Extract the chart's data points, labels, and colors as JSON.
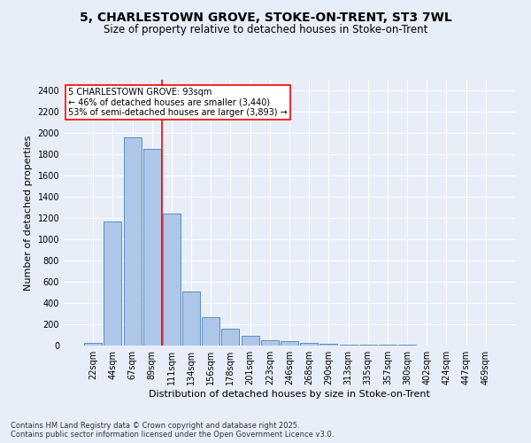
{
  "title_line1": "5, CHARLESTOWN GROVE, STOKE-ON-TRENT, ST3 7WL",
  "title_line2": "Size of property relative to detached houses in Stoke-on-Trent",
  "xlabel": "Distribution of detached houses by size in Stoke-on-Trent",
  "ylabel": "Number of detached properties",
  "categories": [
    "22sqm",
    "44sqm",
    "67sqm",
    "89sqm",
    "111sqm",
    "134sqm",
    "156sqm",
    "178sqm",
    "201sqm",
    "223sqm",
    "246sqm",
    "268sqm",
    "290sqm",
    "313sqm",
    "335sqm",
    "357sqm",
    "380sqm",
    "402sqm",
    "424sqm",
    "447sqm",
    "469sqm"
  ],
  "values": [
    28,
    1170,
    1960,
    1850,
    1240,
    510,
    270,
    155,
    90,
    48,
    40,
    25,
    18,
    12,
    8,
    5,
    5,
    3,
    3,
    2,
    2
  ],
  "bar_color": "#aec6e8",
  "bar_edge_color": "#5a8fc2",
  "vline_color": "red",
  "vline_x": 3.5,
  "annotation_text": "5 CHARLESTOWN GROVE: 93sqm\n← 46% of detached houses are smaller (3,440)\n53% of semi-detached houses are larger (3,893) →",
  "annotation_box_color": "red",
  "ylim": [
    0,
    2500
  ],
  "yticks": [
    0,
    200,
    400,
    600,
    800,
    1000,
    1200,
    1400,
    1600,
    1800,
    2000,
    2200,
    2400
  ],
  "bg_color": "#e8eef8",
  "plot_bg_color": "#e8eef8",
  "footer_text": "Contains HM Land Registry data © Crown copyright and database right 2025.\nContains public sector information licensed under the Open Government Licence v3.0.",
  "title_fontsize": 10,
  "subtitle_fontsize": 8.5,
  "axis_label_fontsize": 8,
  "tick_fontsize": 7,
  "annotation_fontsize": 7,
  "footer_fontsize": 6
}
